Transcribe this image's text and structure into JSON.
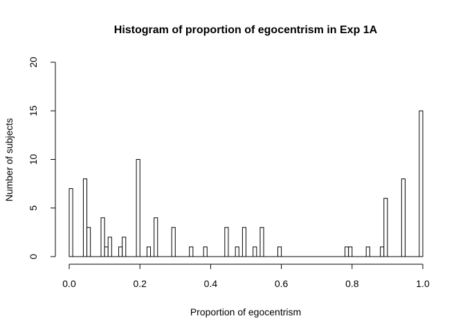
{
  "chart_data": {
    "type": "bar",
    "title": "Histogram of proportion of egocentrism in Exp 1A",
    "xlabel": "Proportion of egocentrism",
    "ylabel": "Number of subjects",
    "xlim": [
      0,
      1
    ],
    "ylim": [
      0,
      20
    ],
    "bin_width": 0.01,
    "x_ticks": [
      "0.0",
      "0.2",
      "0.4",
      "0.6",
      "0.8",
      "1.0"
    ],
    "y_ticks": [
      "0",
      "5",
      "10",
      "15",
      "20"
    ],
    "grid": false,
    "bins": [
      {
        "left": 0.0,
        "count": 7
      },
      {
        "left": 0.04,
        "count": 8
      },
      {
        "left": 0.05,
        "count": 3
      },
      {
        "left": 0.09,
        "count": 4
      },
      {
        "left": 0.1,
        "count": 1
      },
      {
        "left": 0.11,
        "count": 2
      },
      {
        "left": 0.14,
        "count": 1
      },
      {
        "left": 0.15,
        "count": 2
      },
      {
        "left": 0.19,
        "count": 10
      },
      {
        "left": 0.22,
        "count": 1
      },
      {
        "left": 0.24,
        "count": 4
      },
      {
        "left": 0.29,
        "count": 3
      },
      {
        "left": 0.34,
        "count": 1
      },
      {
        "left": 0.38,
        "count": 1
      },
      {
        "left": 0.44,
        "count": 3
      },
      {
        "left": 0.47,
        "count": 1
      },
      {
        "left": 0.49,
        "count": 3
      },
      {
        "left": 0.52,
        "count": 1
      },
      {
        "left": 0.54,
        "count": 3
      },
      {
        "left": 0.59,
        "count": 1
      },
      {
        "left": 0.78,
        "count": 1
      },
      {
        "left": 0.79,
        "count": 1
      },
      {
        "left": 0.84,
        "count": 1
      },
      {
        "left": 0.88,
        "count": 1
      },
      {
        "left": 0.89,
        "count": 6
      },
      {
        "left": 0.94,
        "count": 8
      },
      {
        "left": 0.99,
        "count": 15
      }
    ]
  }
}
